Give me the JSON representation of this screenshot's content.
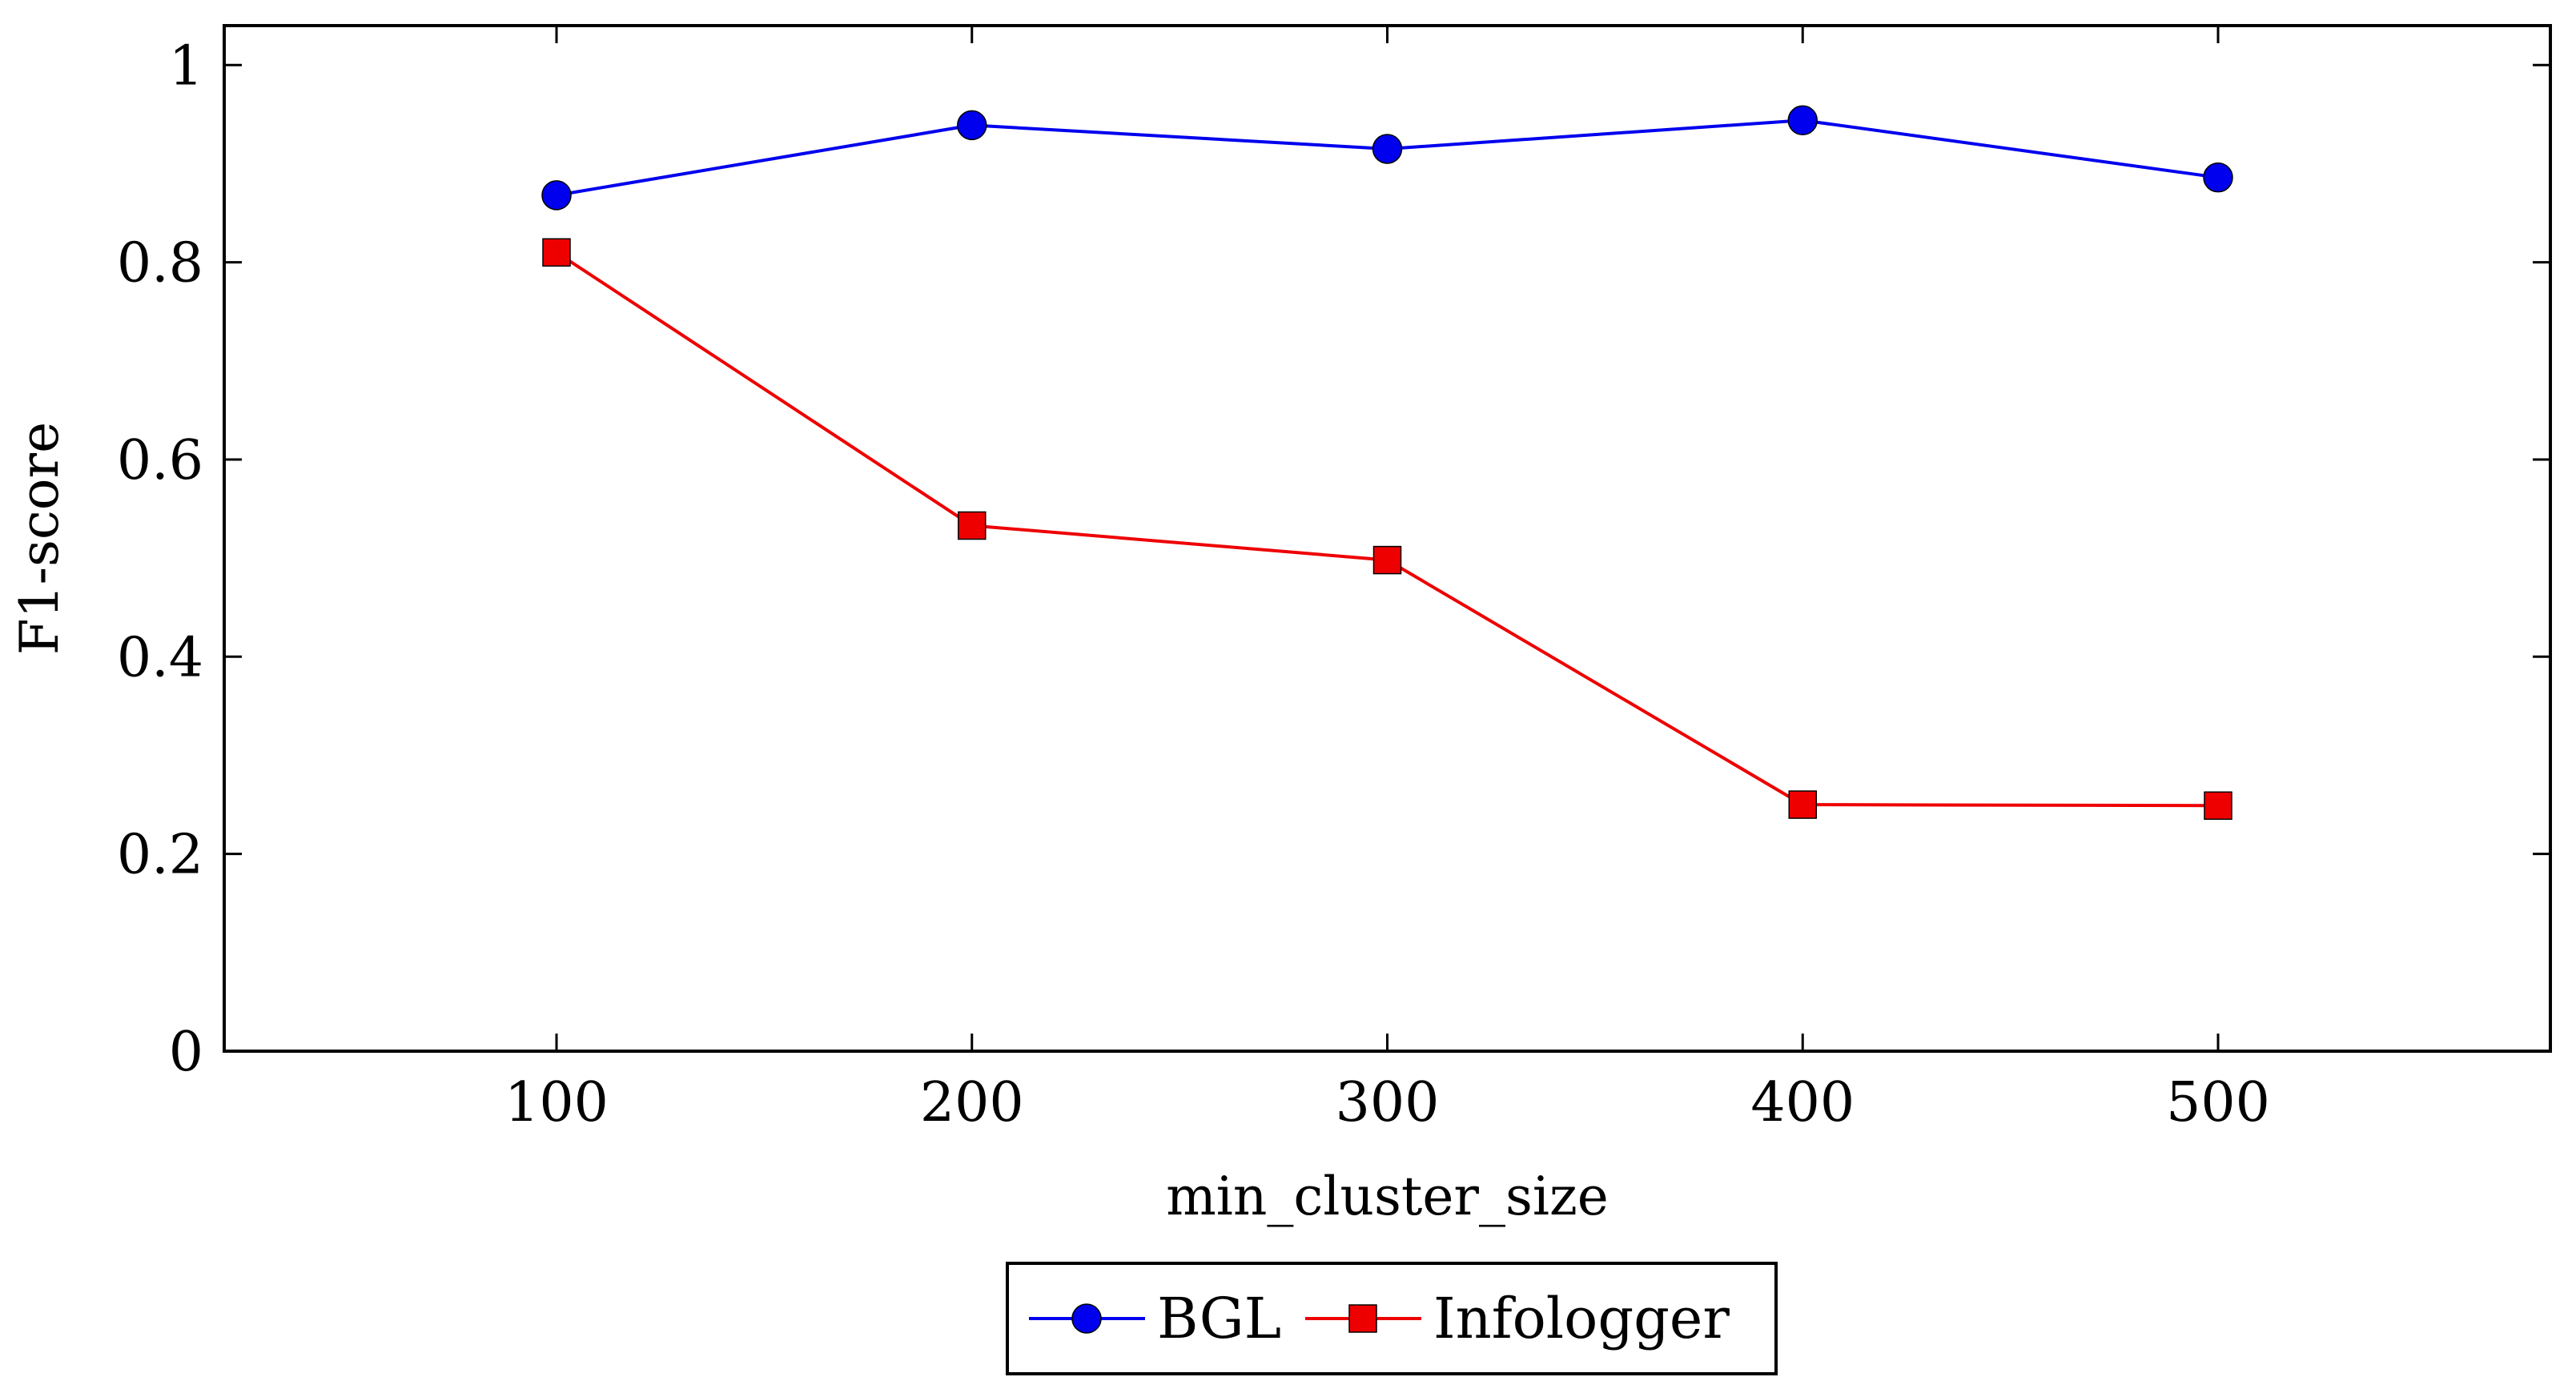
{
  "chart_data": {
    "type": "line",
    "title": "",
    "xlabel": "min_cluster_size",
    "ylabel": "F1-score",
    "x": [
      100,
      200,
      300,
      400,
      500
    ],
    "xlim": [
      20,
      580
    ],
    "ylim": [
      0,
      1.04
    ],
    "xticks": [
      100,
      200,
      300,
      400,
      500
    ],
    "xtick_labels": [
      "100",
      "200",
      "300",
      "400",
      "500"
    ],
    "yticks": [
      0,
      0.2,
      0.4,
      0.6,
      0.8,
      1
    ],
    "ytick_labels": [
      "0",
      "0.2",
      "0.4",
      "0.6",
      "0.8",
      "1"
    ],
    "grid": false,
    "legend_position": "bottom-center",
    "series": [
      {
        "name": "BGL",
        "color": "#0000ee",
        "marker": "circle",
        "values": [
          0.868,
          0.939,
          0.915,
          0.944,
          0.886
        ]
      },
      {
        "name": "Infologger",
        "color": "#ee0000",
        "marker": "square",
        "values": [
          0.81,
          0.533,
          0.498,
          0.25,
          0.249
        ]
      }
    ]
  }
}
